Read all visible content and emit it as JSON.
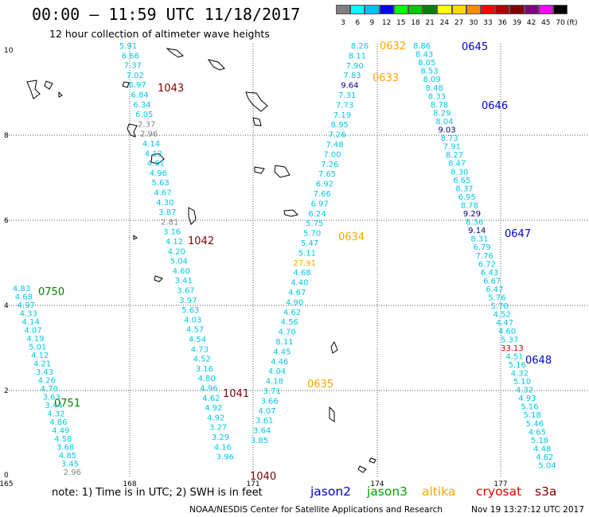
{
  "header": {
    "title": "00:00 – 11:59 UTC 11/18/2017",
    "subtitle": "12 hour collection of altimeter wave heights"
  },
  "color_scale": {
    "bins": [
      {
        "label": "3",
        "color": "#7f7f7f"
      },
      {
        "label": "6",
        "color": "#00ffff"
      },
      {
        "label": "9",
        "color": "#00bfff"
      },
      {
        "label": "12",
        "color": "#0000ff"
      },
      {
        "label": "15",
        "color": "#00ff00"
      },
      {
        "label": "18",
        "color": "#00c800"
      },
      {
        "label": "21",
        "color": "#008000"
      },
      {
        "label": "24",
        "color": "#ffff00"
      },
      {
        "label": "27",
        "color": "#ffd700"
      },
      {
        "label": "30",
        "color": "#ff8c00"
      },
      {
        "label": "33",
        "color": "#ff0000"
      },
      {
        "label": "36",
        "color": "#b00000"
      },
      {
        "label": "39",
        "color": "#800000"
      },
      {
        "label": "42",
        "color": "#800080"
      },
      {
        "label": "45",
        "color": "#ff00ff"
      },
      {
        "label": "70",
        "color": "#000000"
      }
    ],
    "unit": "(ft)"
  },
  "map": {
    "lon_range": [
      165,
      179
    ],
    "lat_range": [
      0,
      10
    ],
    "x_ticks": [
      "165",
      "168",
      "171",
      "174",
      "177"
    ],
    "y_ticks": [
      "0",
      "2",
      "4",
      "6",
      "8",
      "10"
    ],
    "grid": "dotted"
  },
  "value_colors": {
    "cyan": "#00c8e6",
    "gray": "#808080",
    "navy": "#000080",
    "blue": "#0000cd",
    "green": "#008000",
    "orange": "#ffa500",
    "maroon": "#800000",
    "red": "#cc0000"
  },
  "passes": [
    {
      "id": "pass-1",
      "values": [
        {
          "v": "5.91",
          "c": "cyan"
        },
        {
          "v": "6.66",
          "c": "cyan"
        },
        {
          "v": "7.37",
          "c": "cyan"
        },
        {
          "v": "7.02",
          "c": "cyan"
        },
        {
          "v": "6.97",
          "c": "cyan"
        },
        {
          "v": "6.84",
          "c": "cyan"
        },
        {
          "v": "6.34",
          "c": "cyan"
        },
        {
          "v": "6.05",
          "c": "cyan"
        },
        {
          "v": "2.37",
          "c": "gray"
        },
        {
          "v": "2.96",
          "c": "gray"
        },
        {
          "v": "4.14",
          "c": "cyan"
        },
        {
          "v": "4.12",
          "c": "cyan"
        },
        {
          "v": "4.61",
          "c": "cyan"
        },
        {
          "v": "4.96",
          "c": "cyan"
        },
        {
          "v": "5.63",
          "c": "cyan"
        },
        {
          "v": "4.67",
          "c": "cyan"
        },
        {
          "v": "4.30",
          "c": "cyan"
        },
        {
          "v": "3.87",
          "c": "cyan"
        },
        {
          "v": "2.81",
          "c": "gray"
        },
        {
          "v": "3.16",
          "c": "cyan"
        },
        {
          "v": "4.12",
          "c": "cyan"
        },
        {
          "v": "4.20",
          "c": "cyan"
        },
        {
          "v": "5.04",
          "c": "cyan"
        },
        {
          "v": "4.60",
          "c": "cyan"
        },
        {
          "v": "3.41",
          "c": "cyan"
        },
        {
          "v": "3.67",
          "c": "cyan"
        },
        {
          "v": "3.97",
          "c": "cyan"
        },
        {
          "v": "5.63",
          "c": "cyan"
        },
        {
          "v": "4.03",
          "c": "cyan"
        },
        {
          "v": "4.57",
          "c": "cyan"
        },
        {
          "v": "4.54",
          "c": "cyan"
        },
        {
          "v": "4.73",
          "c": "cyan"
        },
        {
          "v": "4.52",
          "c": "cyan"
        },
        {
          "v": "3.16",
          "c": "cyan"
        },
        {
          "v": "4.80",
          "c": "cyan"
        },
        {
          "v": "4.96",
          "c": "cyan"
        },
        {
          "v": "4.62",
          "c": "cyan"
        },
        {
          "v": "4.92",
          "c": "cyan"
        },
        {
          "v": "4.92",
          "c": "cyan"
        },
        {
          "v": "3.27",
          "c": "cyan"
        },
        {
          "v": "3.29",
          "c": "cyan"
        },
        {
          "v": "4.16",
          "c": "cyan"
        },
        {
          "v": "3.96",
          "c": "cyan"
        }
      ]
    },
    {
      "id": "pass-2",
      "values": [
        {
          "v": "4.83",
          "c": "cyan"
        },
        {
          "v": "4.68",
          "c": "cyan"
        },
        {
          "v": "4.97",
          "c": "cyan"
        },
        {
          "v": "4.33",
          "c": "cyan"
        },
        {
          "v": "4.14",
          "c": "cyan"
        },
        {
          "v": "4.07",
          "c": "cyan"
        },
        {
          "v": "4.19",
          "c": "cyan"
        },
        {
          "v": "5.01",
          "c": "cyan"
        },
        {
          "v": "4.12",
          "c": "cyan"
        },
        {
          "v": "4.21",
          "c": "cyan"
        },
        {
          "v": "3.43",
          "c": "cyan"
        },
        {
          "v": "4.26",
          "c": "cyan"
        },
        {
          "v": "4.70",
          "c": "cyan"
        },
        {
          "v": "3.63",
          "c": "cyan"
        },
        {
          "v": "3.44",
          "c": "cyan"
        },
        {
          "v": "4.32",
          "c": "cyan"
        },
        {
          "v": "4.86",
          "c": "cyan"
        },
        {
          "v": "4.49",
          "c": "cyan"
        },
        {
          "v": "4.58",
          "c": "cyan"
        },
        {
          "v": "3.68",
          "c": "cyan"
        },
        {
          "v": "4.85",
          "c": "cyan"
        },
        {
          "v": "3.45",
          "c": "cyan"
        },
        {
          "v": "2.96",
          "c": "gray"
        }
      ]
    },
    {
      "id": "pass-3",
      "values": [
        {
          "v": "8.26",
          "c": "cyan"
        },
        {
          "v": "8.11",
          "c": "cyan"
        },
        {
          "v": "7.90",
          "c": "cyan"
        },
        {
          "v": "7.83",
          "c": "cyan"
        },
        {
          "v": "9.64",
          "c": "navy"
        },
        {
          "v": "7.31",
          "c": "cyan"
        },
        {
          "v": "7.73",
          "c": "cyan"
        },
        {
          "v": "7.19",
          "c": "cyan"
        },
        {
          "v": "8.95",
          "c": "cyan"
        },
        {
          "v": "7.26",
          "c": "cyan"
        },
        {
          "v": "7.48",
          "c": "cyan"
        },
        {
          "v": "7.00",
          "c": "cyan"
        },
        {
          "v": "7.26",
          "c": "cyan"
        },
        {
          "v": "7.65",
          "c": "cyan"
        },
        {
          "v": "6.92",
          "c": "cyan"
        },
        {
          "v": "7.66",
          "c": "cyan"
        },
        {
          "v": "6.97",
          "c": "cyan"
        },
        {
          "v": "6.24",
          "c": "cyan"
        },
        {
          "v": "5.75",
          "c": "cyan"
        },
        {
          "v": "5.70",
          "c": "cyan"
        },
        {
          "v": "5.47",
          "c": "cyan"
        },
        {
          "v": "5.11",
          "c": "cyan"
        },
        {
          "v": "27.91",
          "c": "orange"
        },
        {
          "v": "4.68",
          "c": "cyan"
        },
        {
          "v": "4.40",
          "c": "cyan"
        },
        {
          "v": "4.67",
          "c": "cyan"
        },
        {
          "v": "4.90",
          "c": "cyan"
        },
        {
          "v": "4.62",
          "c": "cyan"
        },
        {
          "v": "4.56",
          "c": "cyan"
        },
        {
          "v": "4.70",
          "c": "cyan"
        },
        {
          "v": "8.11",
          "c": "cyan"
        },
        {
          "v": "4.45",
          "c": "cyan"
        },
        {
          "v": "4.46",
          "c": "cyan"
        },
        {
          "v": "4.04",
          "c": "cyan"
        },
        {
          "v": "4.18",
          "c": "cyan"
        },
        {
          "v": "3.71",
          "c": "cyan"
        },
        {
          "v": "3.66",
          "c": "cyan"
        },
        {
          "v": "4.07",
          "c": "cyan"
        },
        {
          "v": "3.61",
          "c": "cyan"
        },
        {
          "v": "3.64",
          "c": "cyan"
        },
        {
          "v": "3.85",
          "c": "cyan"
        }
      ]
    },
    {
      "id": "pass-4",
      "values": [
        {
          "v": "8.86",
          "c": "cyan"
        },
        {
          "v": "8.43",
          "c": "cyan"
        },
        {
          "v": "8.05",
          "c": "cyan"
        },
        {
          "v": "8.53",
          "c": "cyan"
        },
        {
          "v": "8.09",
          "c": "cyan"
        },
        {
          "v": "8.48",
          "c": "cyan"
        },
        {
          "v": "8.33",
          "c": "cyan"
        },
        {
          "v": "8.78",
          "c": "cyan"
        },
        {
          "v": "8.29",
          "c": "cyan"
        },
        {
          "v": "8.04",
          "c": "cyan"
        },
        {
          "v": "9.03",
          "c": "navy"
        },
        {
          "v": "8.73",
          "c": "cyan"
        },
        {
          "v": "7.91",
          "c": "cyan"
        },
        {
          "v": "8.27",
          "c": "cyan"
        },
        {
          "v": "8.47",
          "c": "cyan"
        },
        {
          "v": "8.30",
          "c": "cyan"
        },
        {
          "v": "6.65",
          "c": "cyan"
        },
        {
          "v": "8.37",
          "c": "cyan"
        },
        {
          "v": "6.95",
          "c": "cyan"
        },
        {
          "v": "8.78",
          "c": "cyan"
        },
        {
          "v": "9.29",
          "c": "navy"
        },
        {
          "v": "8.36",
          "c": "cyan"
        },
        {
          "v": "9.14",
          "c": "navy"
        },
        {
          "v": "8.31",
          "c": "cyan"
        },
        {
          "v": "6.79",
          "c": "cyan"
        },
        {
          "v": "7.76",
          "c": "cyan"
        },
        {
          "v": "6.72",
          "c": "cyan"
        },
        {
          "v": "6.43",
          "c": "cyan"
        },
        {
          "v": "6.67",
          "c": "cyan"
        },
        {
          "v": "6.47",
          "c": "cyan"
        },
        {
          "v": "5.76",
          "c": "cyan"
        },
        {
          "v": "5.70",
          "c": "cyan"
        },
        {
          "v": "4.52",
          "c": "cyan"
        },
        {
          "v": "4.47",
          "c": "cyan"
        },
        {
          "v": "4.60",
          "c": "cyan"
        },
        {
          "v": "5.37",
          "c": "cyan"
        },
        {
          "v": "33.13",
          "c": "red"
        },
        {
          "v": "4.51",
          "c": "cyan"
        },
        {
          "v": "5.16",
          "c": "cyan"
        },
        {
          "v": "4.32",
          "c": "cyan"
        },
        {
          "v": "5.10",
          "c": "cyan"
        },
        {
          "v": "4.32",
          "c": "cyan"
        },
        {
          "v": "4.93",
          "c": "cyan"
        },
        {
          "v": "5.16",
          "c": "cyan"
        },
        {
          "v": "5.18",
          "c": "cyan"
        },
        {
          "v": "5.46",
          "c": "cyan"
        },
        {
          "v": "4.65",
          "c": "cyan"
        },
        {
          "v": "5.18",
          "c": "cyan"
        },
        {
          "v": "4.48",
          "c": "cyan"
        },
        {
          "v": "4.62",
          "c": "cyan"
        },
        {
          "v": "5.04",
          "c": "cyan"
        }
      ]
    }
  ],
  "time_labels": [
    {
      "text": "0632",
      "c": "orange"
    },
    {
      "text": "0633",
      "c": "orange"
    },
    {
      "text": "0634",
      "c": "orange"
    },
    {
      "text": "0635",
      "c": "orange"
    },
    {
      "text": "0645",
      "c": "blue"
    },
    {
      "text": "0646",
      "c": "blue"
    },
    {
      "text": "0647",
      "c": "blue"
    },
    {
      "text": "0648",
      "c": "blue"
    },
    {
      "text": "0750",
      "c": "green"
    },
    {
      "text": "0751",
      "c": "green"
    }
  ],
  "pressure_labels": [
    "1043",
    "1042",
    "1041",
    "1040"
  ],
  "footer": {
    "note": "note:  1) Time is in UTC;  2) SWH is in feet",
    "satellites": [
      {
        "name": "jason2",
        "color": "#0000cd"
      },
      {
        "name": "jason3",
        "color": "#00a000"
      },
      {
        "name": "altika",
        "color": "#ffa500"
      },
      {
        "name": "cryosat",
        "color": "#e00000"
      },
      {
        "name": "s3a",
        "color": "#800000"
      }
    ],
    "credit": "NOAA/NESDIS Center for Satellite Applications and Research",
    "timestamp": "Nov 19 13:27:12 UTC 2017"
  }
}
